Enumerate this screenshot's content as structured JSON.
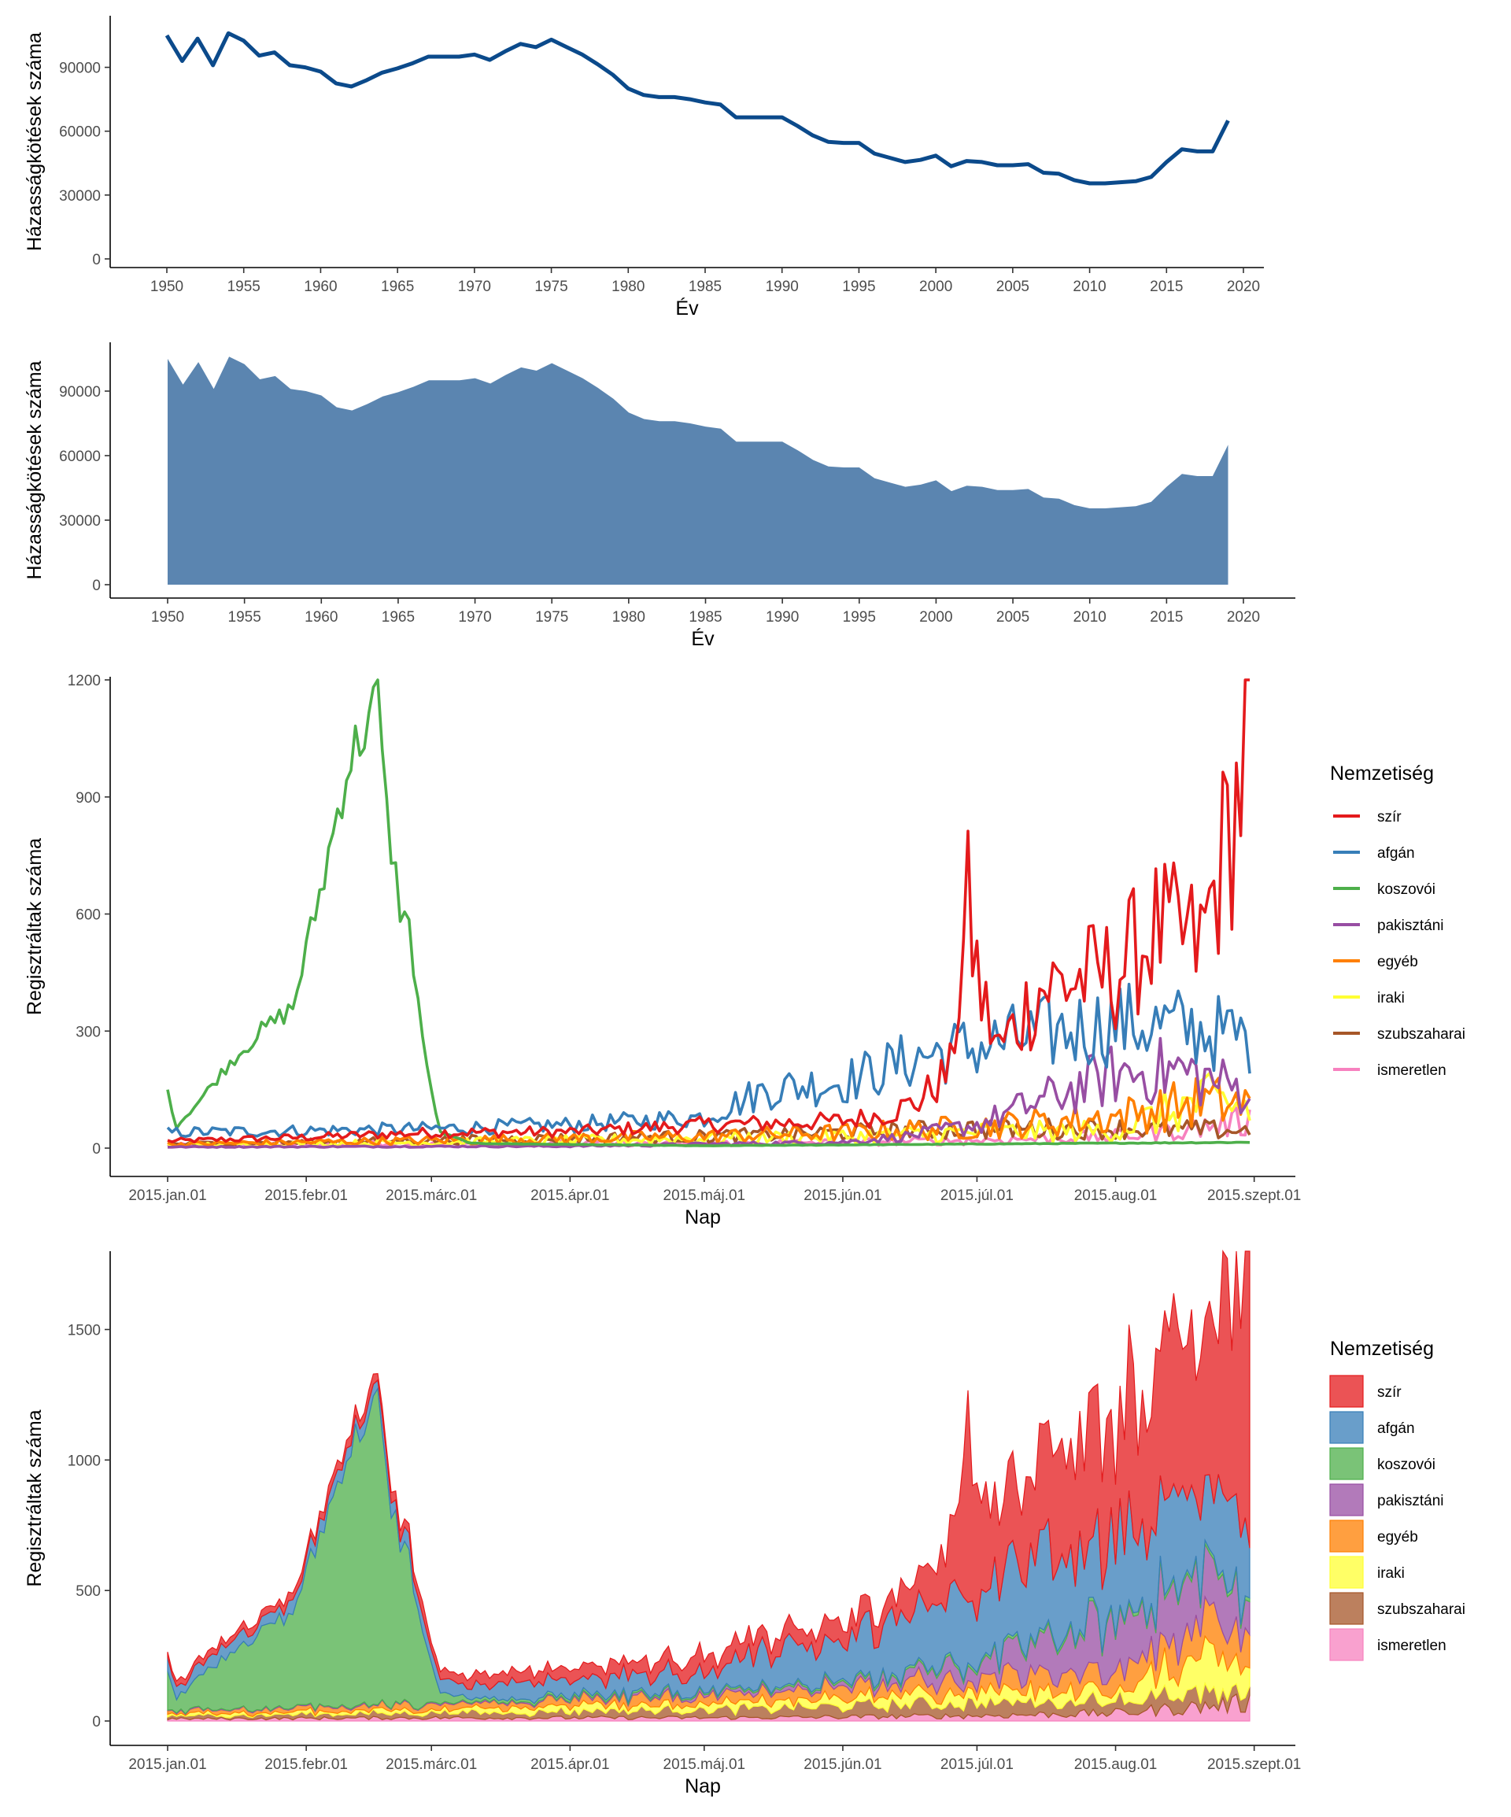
{
  "colors": {
    "line_single": "#0b4a8b",
    "area_single": "#5b85b0",
    "series": [
      "#e41a1c",
      "#377eb8",
      "#4daf4a",
      "#984ea3",
      "#ff7f00",
      "#ffff33",
      "#a65628",
      "#f781bf"
    ]
  },
  "chart_data": [
    {
      "type": "line",
      "xlabel": "Év",
      "ylabel": "Házasságkötések száma",
      "xlim": [
        1950,
        2020
      ],
      "ylim": [
        0,
        105000
      ],
      "x_ticks": [
        1950,
        1955,
        1960,
        1965,
        1970,
        1975,
        1980,
        1985,
        1990,
        1995,
        2000,
        2005,
        2010,
        2015,
        2020
      ],
      "y_ticks": [
        0,
        30000,
        60000,
        90000
      ],
      "grid": false,
      "x": [
        1950,
        1951,
        1952,
        1953,
        1954,
        1955,
        1956,
        1957,
        1958,
        1959,
        1960,
        1961,
        1962,
        1963,
        1964,
        1965,
        1966,
        1967,
        1968,
        1969,
        1970,
        1971,
        1972,
        1973,
        1974,
        1975,
        1976,
        1977,
        1978,
        1979,
        1980,
        1981,
        1982,
        1983,
        1984,
        1985,
        1986,
        1987,
        1988,
        1989,
        1990,
        1991,
        1992,
        1993,
        1994,
        1995,
        1996,
        1997,
        1998,
        1999,
        2000,
        2001,
        2002,
        2003,
        2004,
        2005,
        2006,
        2007,
        2008,
        2009,
        2010,
        2011,
        2012,
        2013,
        2014,
        2015,
        2016,
        2017,
        2018,
        2019
      ],
      "values": [
        105000,
        93000,
        103500,
        91000,
        106000,
        102500,
        95500,
        97000,
        91000,
        90000,
        88000,
        82500,
        81000,
        84000,
        87500,
        89500,
        92000,
        95000,
        95000,
        95000,
        96000,
        93500,
        97500,
        101000,
        99500,
        103000,
        99500,
        96000,
        91500,
        86500,
        80000,
        77000,
        76000,
        76000,
        75000,
        73500,
        72500,
        66500,
        66500,
        66500,
        66500,
        62500,
        58000,
        55000,
        54500,
        54500,
        49500,
        47500,
        45500,
        46500,
        48500,
        43500,
        46000,
        45500,
        44000,
        44000,
        44500,
        40500,
        40000,
        37000,
        35500,
        35500,
        36000,
        36500,
        38500,
        45500,
        51500,
        50500,
        50500,
        65000
      ]
    },
    {
      "type": "area",
      "xlabel": "Év",
      "ylabel": "Házasságkötések száma",
      "xlim": [
        1950,
        2020
      ],
      "ylim": [
        0,
        105000
      ],
      "x_ticks": [
        1950,
        1955,
        1960,
        1965,
        1970,
        1975,
        1980,
        1985,
        1990,
        1995,
        2000,
        2005,
        2010,
        2015,
        2020
      ],
      "y_ticks": [
        0,
        30000,
        60000,
        90000
      ],
      "grid": false,
      "same_values_as_first_chart": true
    },
    {
      "type": "line",
      "xlabel": "Nap",
      "ylabel": "Regisztráltak száma",
      "x_ticks": [
        "2015.jan.01",
        "2015.febr.01",
        "2015.márc.01",
        "2015.ápr.01",
        "2015.máj.01",
        "2015.jún.01",
        "2015.júl.01",
        "2015.aug.01",
        "2015.szept.01"
      ],
      "x_range": [
        "2015-01-01",
        "2015-09-01"
      ],
      "y_ticks": [
        0,
        300,
        600,
        900,
        1200
      ],
      "ylim": [
        0,
        1200
      ],
      "legend_title": "Nemzetiség",
      "legend_position": "right",
      "grid": false,
      "series_shapes": {
        "szír": [
          [
            "2015-01-01",
            18
          ],
          [
            "2015-02-01",
            28
          ],
          [
            "2015-03-01",
            40
          ],
          [
            "2015-04-01",
            42
          ],
          [
            "2015-05-01",
            60
          ],
          [
            "2015-05-20",
            65
          ],
          [
            "2015-06-01",
            70
          ],
          [
            "2015-06-10",
            85
          ],
          [
            "2015-06-18",
            120
          ],
          [
            "2015-06-25",
            200
          ],
          [
            "2015-06-29",
            610
          ],
          [
            "2015-07-02",
            380
          ],
          [
            "2015-07-06",
            250
          ],
          [
            "2015-07-15",
            410
          ],
          [
            "2015-08-01",
            450
          ],
          [
            "2015-08-10",
            560
          ],
          [
            "2015-08-20",
            520
          ],
          [
            "2015-08-27",
            840
          ],
          [
            "2015-09-01",
            1090
          ]
        ],
        "afgán": [
          [
            "2015-01-01",
            40
          ],
          [
            "2015-02-01",
            45
          ],
          [
            "2015-03-01",
            50
          ],
          [
            "2015-04-01",
            60
          ],
          [
            "2015-05-01",
            80
          ],
          [
            "2015-05-15",
            150
          ],
          [
            "2015-06-01",
            170
          ],
          [
            "2015-06-20",
            240
          ],
          [
            "2015-07-01",
            260
          ],
          [
            "2015-07-15",
            290
          ],
          [
            "2015-08-01",
            320
          ],
          [
            "2015-08-15",
            310
          ],
          [
            "2015-09-01",
            280
          ]
        ],
        "koszovói": [
          [
            "2015-01-01",
            140
          ],
          [
            "2015-01-03",
            55
          ],
          [
            "2015-01-08",
            120
          ],
          [
            "2015-01-15",
            220
          ],
          [
            "2015-01-22",
            300
          ],
          [
            "2015-01-29",
            360
          ],
          [
            "2015-02-05",
            700
          ],
          [
            "2015-02-10",
            970
          ],
          [
            "2015-02-14",
            1080
          ],
          [
            "2015-02-17",
            1150
          ],
          [
            "2015-02-19",
            850
          ],
          [
            "2015-02-22",
            620
          ],
          [
            "2015-02-24",
            560
          ],
          [
            "2015-02-28",
            200
          ],
          [
            "2015-03-03",
            40
          ],
          [
            "2015-03-10",
            12
          ],
          [
            "2015-05-01",
            6
          ],
          [
            "2015-09-01",
            15
          ]
        ],
        "pakisztáni": [
          [
            "2015-01-01",
            3
          ],
          [
            "2015-04-01",
            5
          ],
          [
            "2015-06-01",
            15
          ],
          [
            "2015-06-15",
            30
          ],
          [
            "2015-07-01",
            60
          ],
          [
            "2015-07-15",
            120
          ],
          [
            "2015-08-01",
            190
          ],
          [
            "2015-08-15",
            200
          ],
          [
            "2015-09-01",
            140
          ]
        ],
        "egyéb": [
          [
            "2015-01-01",
            10
          ],
          [
            "2015-03-01",
            20
          ],
          [
            "2015-05-01",
            30
          ],
          [
            "2015-06-01",
            40
          ],
          [
            "2015-07-01",
            55
          ],
          [
            "2015-08-01",
            80
          ],
          [
            "2015-08-20",
            120
          ],
          [
            "2015-09-01",
            110
          ]
        ],
        "iraki": [
          [
            "2015-01-01",
            8
          ],
          [
            "2015-03-01",
            15
          ],
          [
            "2015-05-01",
            25
          ],
          [
            "2015-06-01",
            30
          ],
          [
            "2015-07-01",
            40
          ],
          [
            "2015-08-01",
            45
          ],
          [
            "2015-08-20",
            120
          ],
          [
            "2015-09-01",
            100
          ]
        ],
        "szubszaharai": [
          [
            "2015-01-01",
            10
          ],
          [
            "2015-03-01",
            20
          ],
          [
            "2015-05-01",
            30
          ],
          [
            "2015-06-01",
            40
          ],
          [
            "2015-07-01",
            50
          ],
          [
            "2015-08-01",
            50
          ],
          [
            "2015-09-01",
            45
          ]
        ],
        "ismeretlen": [
          [
            "2015-01-01",
            8
          ],
          [
            "2015-03-01",
            12
          ],
          [
            "2015-05-01",
            12
          ],
          [
            "2015-06-01",
            15
          ],
          [
            "2015-07-01",
            20
          ],
          [
            "2015-08-01",
            30
          ],
          [
            "2015-09-01",
            70
          ]
        ]
      }
    },
    {
      "type": "area",
      "stacked": true,
      "xlabel": "Nap",
      "ylabel": "Regisztráltak száma",
      "x_ticks": [
        "2015.jan.01",
        "2015.febr.01",
        "2015.márc.01",
        "2015.ápr.01",
        "2015.máj.01",
        "2015.jún.01",
        "2015.júl.01",
        "2015.aug.01",
        "2015.szept.01"
      ],
      "x_range": [
        "2015-01-01",
        "2015-09-01"
      ],
      "y_ticks": [
        0,
        500,
        1000,
        1500
      ],
      "ylim": [
        0,
        1800
      ],
      "legend_title": "Nemzetiség",
      "legend_position": "right",
      "grid": false,
      "same_series_as_third_chart": true
    }
  ],
  "legend": {
    "title": "Nemzetiség",
    "entries": [
      "szír",
      "afgán",
      "koszovói",
      "pakisztáni",
      "egyéb",
      "iraki",
      "szubszaharai",
      "ismeretlen"
    ]
  }
}
